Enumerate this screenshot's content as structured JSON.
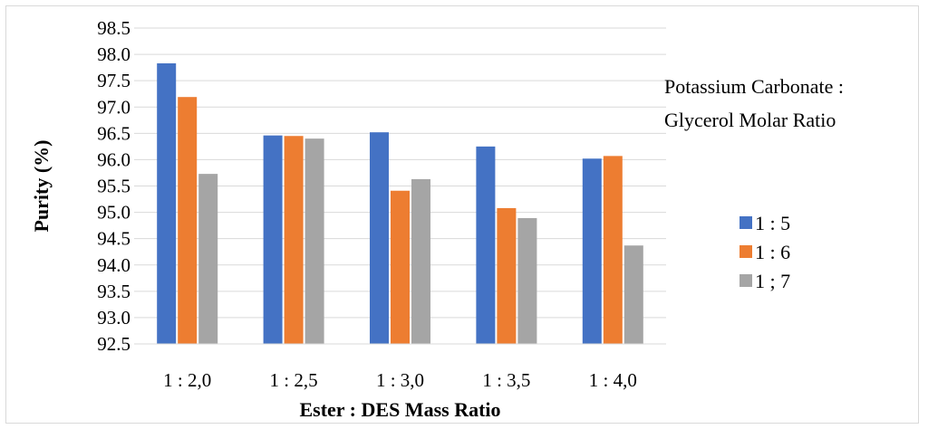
{
  "chart_data": {
    "type": "bar",
    "title": "",
    "xlabel": "Ester : DES Mass Ratio",
    "ylabel": "Purity (%)",
    "ylim": [
      92.5,
      98.5
    ],
    "ytick_step": 0.5,
    "yticks": [
      "92.5",
      "93.0",
      "93.5",
      "94.0",
      "94.5",
      "95.0",
      "95.5",
      "96.0",
      "96.5",
      "97.0",
      "97.5",
      "98.0",
      "98.5"
    ],
    "grid": true,
    "categories": [
      "1 : 2,0",
      "1 : 2,5",
      "1 : 3,0",
      "1 : 3,5",
      "1 : 4,0"
    ],
    "legend_title": [
      "Potassium Carbonate :",
      "Glycerol Molar Ratio"
    ],
    "legend_position": "right",
    "series": [
      {
        "name": "1 : 5",
        "color": "#4472C4",
        "values": [
          97.83,
          96.46,
          96.52,
          96.25,
          96.02
        ]
      },
      {
        "name": "1 : 6",
        "color": "#ED7D31",
        "values": [
          97.19,
          96.45,
          95.41,
          95.08,
          96.07
        ]
      },
      {
        "name": "1 ; 7",
        "color": "#A5A5A5",
        "values": [
          95.73,
          96.4,
          95.63,
          94.89,
          94.37
        ]
      }
    ]
  }
}
